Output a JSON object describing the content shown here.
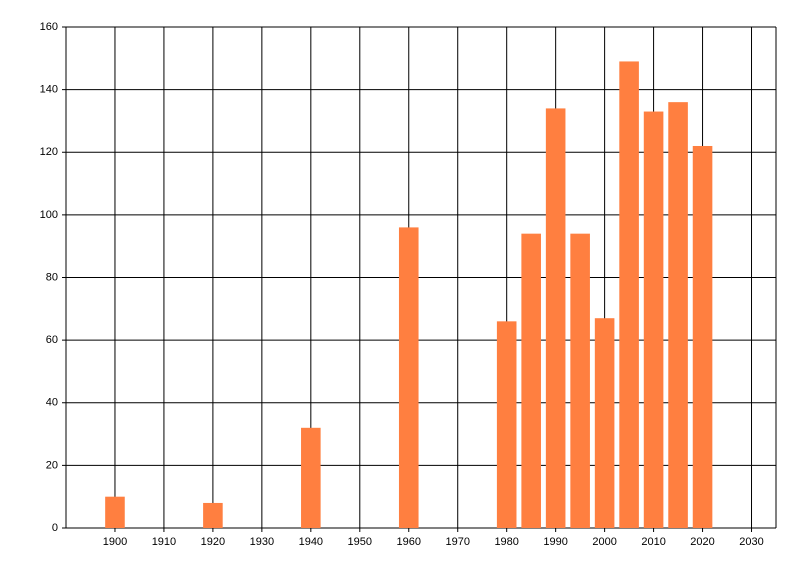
{
  "chart_data": {
    "type": "bar",
    "x": [
      1900,
      1920,
      1940,
      1960,
      1980,
      1985,
      1990,
      1995,
      2000,
      2005,
      2010,
      2015,
      2020
    ],
    "values": [
      10,
      8,
      32,
      96,
      66,
      94,
      134,
      94,
      67,
      149,
      133,
      136,
      122
    ],
    "color": "#ff7f40",
    "xlim": [
      1890,
      2035
    ],
    "xticks": [
      1900,
      1910,
      1920,
      1930,
      1940,
      1950,
      1960,
      1970,
      1980,
      1990,
      2000,
      2010,
      2020,
      2030
    ],
    "ylim": [
      0,
      160
    ],
    "yticks": [
      0,
      20,
      40,
      60,
      80,
      100,
      120,
      140,
      160
    ],
    "grid": true
  }
}
